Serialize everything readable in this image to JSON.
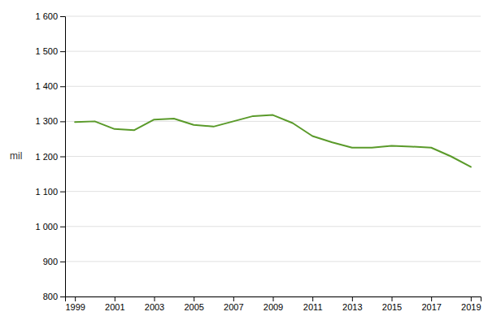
{
  "chart_data": {
    "type": "line",
    "y_label": "mil",
    "x": [
      1999,
      2000,
      2001,
      2002,
      2003,
      2004,
      2005,
      2006,
      2007,
      2008,
      2009,
      2010,
      2011,
      2012,
      2013,
      2014,
      2015,
      2016,
      2017,
      2018,
      2019
    ],
    "values": [
      1298,
      1300,
      1278,
      1275,
      1305,
      1308,
      1290,
      1285,
      1300,
      1315,
      1318,
      1295,
      1258,
      1240,
      1225,
      1225,
      1230,
      1228,
      1225,
      1200,
      1170
    ],
    "color": "#5a9a2a",
    "xlim": [
      1998.5,
      2019.5
    ],
    "xticks": [
      1999,
      2001,
      2003,
      2005,
      2007,
      2009,
      2011,
      2013,
      2015,
      2017,
      2019
    ],
    "ylim": [
      800,
      1600
    ],
    "yticks": [
      800,
      900,
      {
        "value": 1000,
        "label": "1 000"
      },
      {
        "value": 1100,
        "label": "1 100"
      },
      {
        "value": 1200,
        "label": "1 200"
      },
      {
        "value": 1300,
        "label": "1 300"
      },
      {
        "value": 1400,
        "label": "1 400"
      },
      {
        "value": 1500,
        "label": "1 500"
      },
      {
        "value": 1600,
        "label": "1 600"
      }
    ],
    "grid": true
  }
}
